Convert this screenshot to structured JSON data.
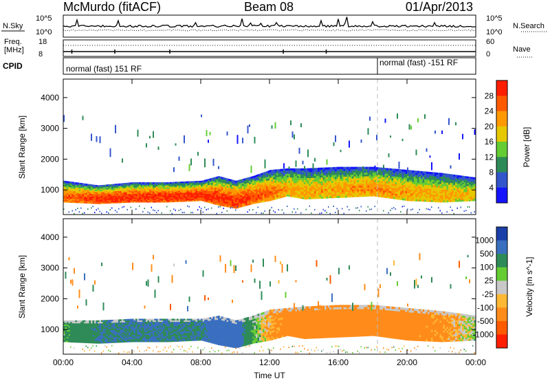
{
  "header": {
    "station": "McMurdo (fitACF)",
    "beam": "Beam 08",
    "date": "01/Apr/2013"
  },
  "panels_top": {
    "nsky_label": "N.Sky",
    "nsky_ticks": [
      "10^5",
      "10^0"
    ],
    "nsearch_label": "N.Search",
    "nsearch_ticks": [
      "10^5",
      "10^0"
    ],
    "freq_label": "Freq.",
    "freq_unit": "[MHz]",
    "freq_ticks": [
      "18",
      "8"
    ],
    "nave_label": "Nave",
    "nave_ticks": [
      "60",
      "0"
    ],
    "cpid_label": "CPID",
    "cpid_segments": [
      "normal (fast) 151 RF",
      "normal (fast) -151 RF"
    ]
  },
  "colors": {
    "power": [
      "#1414ff",
      "#3355cc",
      "#2e8b57",
      "#66cc33",
      "#e6c800",
      "#ff9900",
      "#ff5a00",
      "#ff1e00"
    ],
    "velocity": [
      "#ff1e00",
      "#ff5a00",
      "#ff8c1a",
      "#ffb833",
      "#c8c8c8",
      "#66cc33",
      "#2e8b57",
      "#3a6fc0",
      "#1a3fa8"
    ]
  },
  "chart_data": [
    {
      "type": "heatmap",
      "title": "Power",
      "xlabel": "Time UT",
      "ylabel": "Slant Range [km]",
      "x_ticks": [
        "00:00",
        "04:00",
        "08:00",
        "12:00",
        "16:00",
        "20:00",
        "00:00"
      ],
      "x_range_hours": [
        0,
        24
      ],
      "y_ticks": [
        1000,
        2000,
        3000,
        4000
      ],
      "ylim": [
        200,
        4600
      ],
      "colorbar_label": "Power [dB]",
      "colorbar_ticks": [
        4,
        8,
        12,
        16,
        20,
        24,
        28
      ],
      "colorbar_range": [
        0,
        30
      ],
      "main_band": {
        "time_h": [
          0,
          2,
          4,
          6,
          8,
          9,
          10,
          11,
          12,
          13,
          14,
          16,
          18,
          20,
          22,
          24
        ],
        "range_low_km": [
          600,
          550,
          600,
          600,
          650,
          500,
          400,
          550,
          650,
          800,
          700,
          750,
          800,
          650,
          600,
          650
        ],
        "range_high_km": [
          1300,
          1150,
          1250,
          1250,
          1300,
          1450,
          1300,
          1450,
          1650,
          1700,
          1700,
          1750,
          1750,
          1650,
          1550,
          1400
        ],
        "peak_power_db": [
          24,
          28,
          28,
          28,
          28,
          28,
          28,
          26,
          24,
          20,
          20,
          20,
          22,
          20,
          20,
          18
        ]
      }
    },
    {
      "type": "heatmap",
      "title": "Velocity",
      "xlabel": "Time UT",
      "ylabel": "Slant Range [km]",
      "x_ticks": [
        "00:00",
        "04:00",
        "08:00",
        "12:00",
        "16:00",
        "20:00",
        "00:00"
      ],
      "x_range_hours": [
        0,
        24
      ],
      "y_ticks": [
        1000,
        2000,
        3000,
        4000
      ],
      "ylim": [
        200,
        4600
      ],
      "colorbar_label": "Velocity [m s^-1]",
      "colorbar_ticks": [
        1000,
        500,
        100,
        25,
        -25,
        -100,
        -500,
        -1000
      ],
      "main_band": {
        "time_h": [
          0,
          2,
          4,
          6,
          8,
          9,
          10,
          11,
          12,
          13,
          14,
          16,
          18,
          20,
          22,
          24
        ],
        "range_low_km": [
          600,
          550,
          600,
          600,
          650,
          500,
          400,
          550,
          650,
          800,
          700,
          750,
          800,
          650,
          600,
          650
        ],
        "range_high_km": [
          1300,
          1300,
          1350,
          1350,
          1350,
          1450,
          1300,
          1450,
          1650,
          1700,
          1750,
          1800,
          1800,
          1700,
          1600,
          1450
        ],
        "velocity_ms": [
          100,
          500,
          500,
          500,
          500,
          700,
          800,
          100,
          -100,
          -200,
          -200,
          -200,
          -200,
          -200,
          -150,
          50
        ]
      }
    }
  ]
}
